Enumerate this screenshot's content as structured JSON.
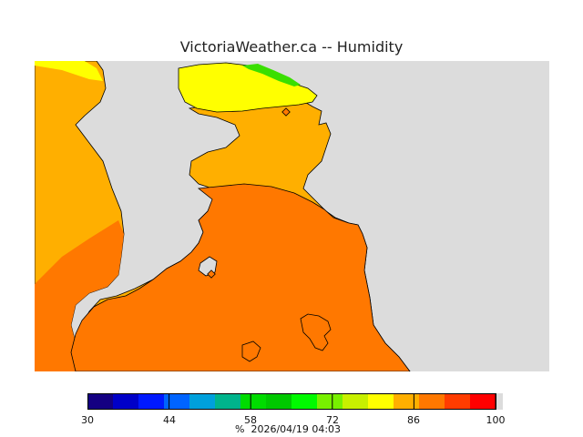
{
  "title": "VictoriaWeather.ca -- Humidity",
  "map": {
    "land_color": "#dcdcdc",
    "zone_colors": {
      "y68_76": "#ffff00",
      "y72_76_green": "#3adf00",
      "o80_86": "#ffaf00",
      "o86_93": "#ff7800"
    },
    "station_markers": [
      "north-station-marker",
      "south-station-marker"
    ]
  },
  "legend": {
    "colors": [
      "#140082",
      "#0000c8",
      "#0019ff",
      "#0064ff",
      "#00a0dc",
      "#00b48c",
      "#00dc00",
      "#00c800",
      "#00fa00",
      "#78f000",
      "#c8f000",
      "#ffff00",
      "#ffaf00",
      "#ff7800",
      "#ff3c00",
      "#ff0000",
      "#dcdcdc"
    ],
    "tick_labels": [
      "30",
      "44",
      "58",
      "72",
      "86",
      "100"
    ],
    "unit": "%",
    "timestamp": "2026/04/19 04:03"
  }
}
